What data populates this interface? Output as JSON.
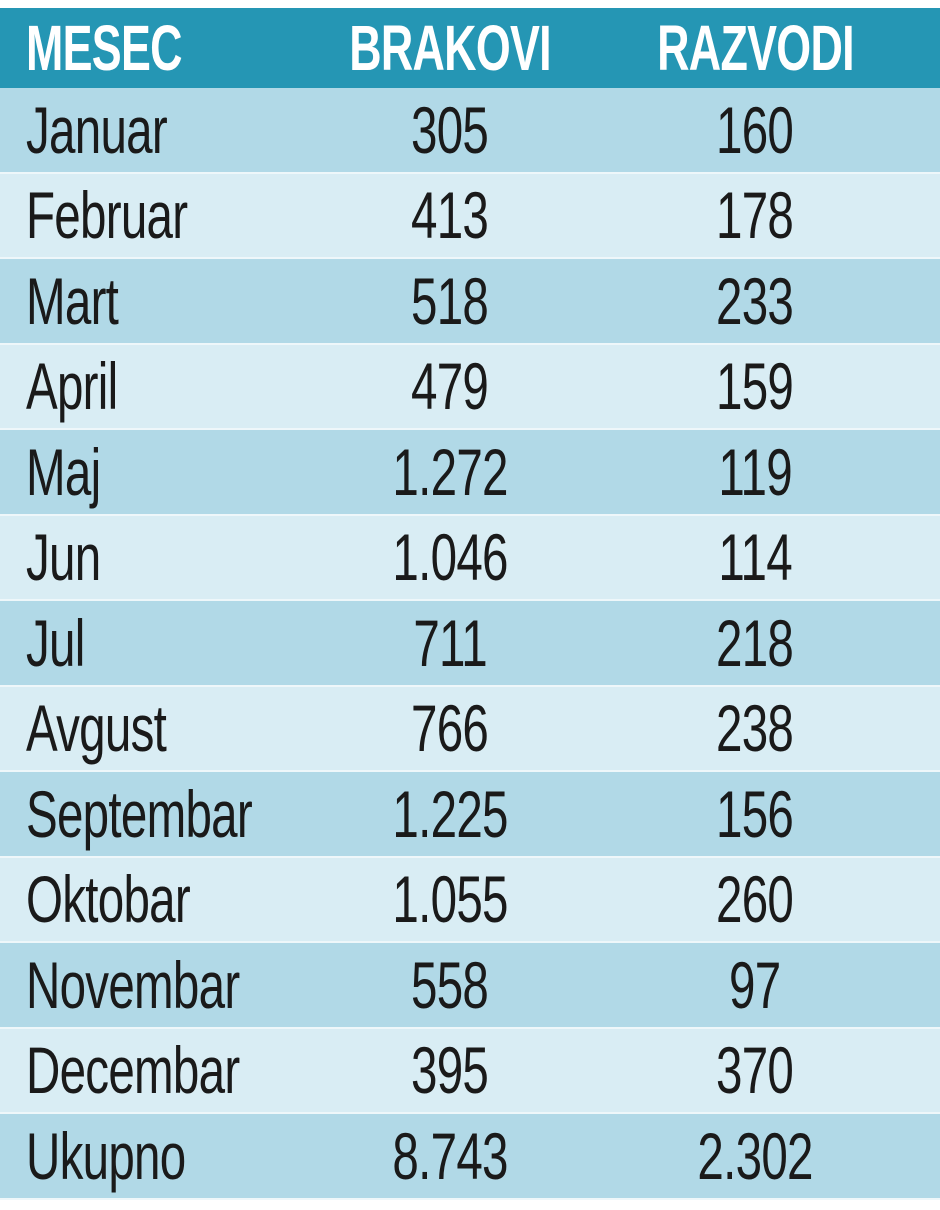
{
  "chart_data": {
    "type": "table",
    "columns": [
      "MESEC",
      "BRAKOVI",
      "RAZVODI"
    ],
    "rows": [
      [
        "Januar",
        "305",
        "160"
      ],
      [
        "Februar",
        "413",
        "178"
      ],
      [
        "Mart",
        "518",
        "233"
      ],
      [
        "April",
        "479",
        "159"
      ],
      [
        "Maj",
        "1.272",
        "119"
      ],
      [
        "Jun",
        "1.046",
        "114"
      ],
      [
        "Jul",
        "711",
        "218"
      ],
      [
        "Avgust",
        "766",
        "238"
      ],
      [
        "Septembar",
        "1.225",
        "156"
      ],
      [
        "Oktobar",
        "1.055",
        "260"
      ],
      [
        "Novembar",
        "558",
        "97"
      ],
      [
        "Decembar",
        "395",
        "370"
      ],
      [
        "Ukupno",
        "8.743",
        "2.302"
      ]
    ],
    "colors": {
      "header": "#2596b4",
      "row_dark": "#b1d9e7",
      "row_light": "#d9edf4"
    }
  }
}
